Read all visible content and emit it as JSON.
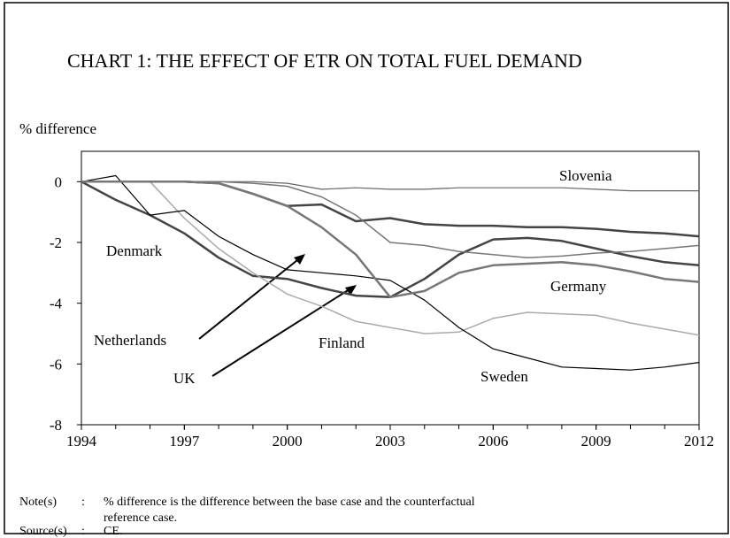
{
  "chart_data": {
    "type": "line",
    "title": "CHART 1: THE EFFECT OF ETR ON TOTAL FUEL DEMAND",
    "y_label": "% difference",
    "x": [
      1994,
      1995,
      1996,
      1997,
      1998,
      1999,
      2000,
      2001,
      2002,
      2003,
      2004,
      2005,
      2006,
      2007,
      2008,
      2009,
      2010,
      2011,
      2012
    ],
    "xlim": [
      1994,
      2012
    ],
    "xticks": [
      1994,
      1997,
      2000,
      2003,
      2006,
      2009,
      2012
    ],
    "ylim": [
      -8,
      1
    ],
    "yticks": [
      -8,
      -6,
      -4,
      -2,
      0
    ],
    "series": [
      {
        "name": "Slovenia",
        "color": "#666666",
        "width": 1.2,
        "values": [
          0,
          0,
          0,
          0,
          0,
          0,
          -0.05,
          -0.25,
          -0.2,
          -0.25,
          -0.25,
          -0.2,
          -0.2,
          -0.2,
          -0.2,
          -0.25,
          -0.3,
          -0.3,
          -0.3
        ]
      },
      {
        "name": "Denmark",
        "color": "#444444",
        "width": 2.5,
        "values": [
          0,
          -0.6,
          -1.1,
          -1.7,
          -2.5,
          -3.1,
          -3.2,
          -3.5,
          -3.75,
          -3.8,
          -3.2,
          -2.4,
          -1.9,
          -1.85,
          -1.95,
          -2.2,
          -2.45,
          -2.65,
          -2.75
        ]
      },
      {
        "name": "Netherlands",
        "color": "#444444",
        "width": 2.5,
        "values": [
          0,
          0,
          0,
          0,
          -0.05,
          -0.4,
          -0.8,
          -0.75,
          -1.3,
          -1.2,
          -1.4,
          -1.45,
          -1.45,
          -1.5,
          -1.5,
          -1.55,
          -1.65,
          -1.7,
          -1.8
        ]
      },
      {
        "name": "UK",
        "color": "#777777",
        "width": 1.5,
        "values": [
          0,
          0,
          0,
          0,
          0,
          -0.05,
          -0.15,
          -0.5,
          -1.1,
          -2.0,
          -2.1,
          -2.3,
          -2.4,
          -2.5,
          -2.45,
          -2.35,
          -2.3,
          -2.2,
          -2.1
        ]
      },
      {
        "name": "Finland",
        "color": "#aaaaaa",
        "width": 1.5,
        "values": [
          0,
          0,
          0,
          -1.2,
          -2.2,
          -3.0,
          -3.7,
          -4.1,
          -4.6,
          -4.8,
          -5.0,
          -4.95,
          -4.5,
          -4.3,
          -4.35,
          -4.4,
          -4.65,
          -4.85,
          -5.05
        ]
      },
      {
        "name": "Sweden",
        "color": "#000000",
        "width": 1.2,
        "values": [
          0,
          0.2,
          -1.1,
          -0.95,
          -1.8,
          -2.4,
          -2.9,
          -3.0,
          -3.1,
          -3.25,
          -3.9,
          -4.8,
          -5.5,
          -5.8,
          -6.1,
          -6.15,
          -6.2,
          -6.1,
          -5.95
        ]
      },
      {
        "name": "Germany",
        "color": "#777777",
        "width": 2.5,
        "values": [
          0,
          0,
          0,
          0,
          -0.05,
          -0.4,
          -0.8,
          -1.5,
          -2.4,
          -3.8,
          -3.6,
          -3.0,
          -2.75,
          -2.7,
          -2.65,
          -2.75,
          -2.95,
          -3.2,
          -3.3
        ]
      }
    ]
  },
  "notes": {
    "label": "Note(s)",
    "sep": ":",
    "text": "% difference is the difference between the base case and the counterfactual reference case."
  },
  "source": {
    "label": "Source(s)",
    "sep": ":",
    "text": "CE."
  }
}
